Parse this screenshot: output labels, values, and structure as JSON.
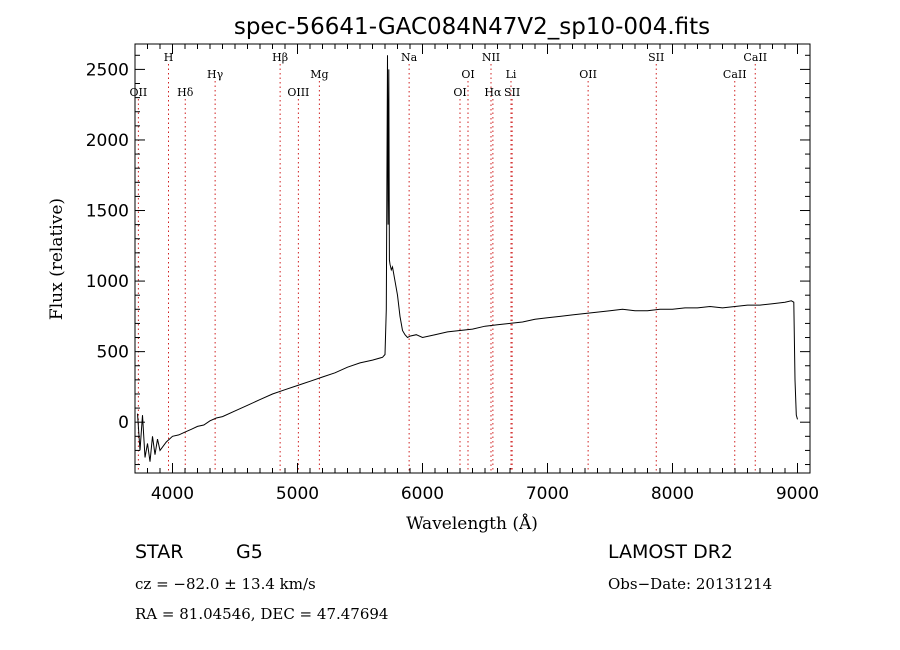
{
  "chart_data": {
    "type": "line",
    "title": "spec-56641-GAC084N47V2_sp10-004.fits",
    "xlabel": "Wavelength (Å)",
    "ylabel": "Flux (relative)",
    "xlim": [
      3700,
      9100
    ],
    "ylim": [
      -360,
      2680
    ],
    "xticks": [
      4000,
      5000,
      6000,
      7000,
      8000,
      9000
    ],
    "yticks": [
      0,
      500,
      1000,
      1500,
      2000,
      2500
    ],
    "line_color": "#000000",
    "marker_color": "#d02020",
    "grid": false,
    "series": [
      {
        "x": [
          3720,
          3740,
          3760,
          3780,
          3800,
          3820,
          3840,
          3860,
          3880,
          3900,
          3950,
          4000,
          4050,
          4100,
          4150,
          4200,
          4250,
          4300,
          4350,
          4400,
          4500,
          4600,
          4700,
          4800,
          4900,
          5000,
          5100,
          5200,
          5300,
          5400,
          5500,
          5600,
          5680,
          5700,
          5710,
          5720,
          5725,
          5730,
          5735,
          5740,
          5750,
          5760,
          5780,
          5800,
          5820,
          5840,
          5860,
          5880,
          5900,
          5950,
          6000,
          6100,
          6200,
          6300,
          6400,
          6500,
          6600,
          6700,
          6800,
          6900,
          7000,
          7100,
          7200,
          7300,
          7400,
          7500,
          7600,
          7700,
          7800,
          7900,
          8000,
          8100,
          8200,
          8300,
          8400,
          8500,
          8600,
          8700,
          8800,
          8900,
          8950,
          8970,
          8980,
          8990,
          9000
        ],
        "y": [
          60,
          -200,
          50,
          -250,
          -150,
          -280,
          -100,
          -230,
          -120,
          -200,
          -140,
          -100,
          -90,
          -70,
          -50,
          -30,
          -20,
          10,
          30,
          40,
          80,
          120,
          160,
          200,
          230,
          260,
          290,
          320,
          350,
          390,
          420,
          440,
          460,
          480,
          800,
          2600,
          1400,
          2500,
          1150,
          1120,
          1080,
          1100,
          1000,
          900,
          750,
          650,
          620,
          600,
          610,
          620,
          600,
          620,
          640,
          650,
          660,
          680,
          690,
          700,
          710,
          730,
          740,
          750,
          760,
          770,
          780,
          790,
          800,
          790,
          790,
          800,
          800,
          810,
          810,
          820,
          810,
          820,
          830,
          830,
          840,
          850,
          860,
          850,
          300,
          50,
          20
        ]
      }
    ],
    "spectral_lines": [
      {
        "label": "OII",
        "x": 3727,
        "row": 3
      },
      {
        "label": "H",
        "x": 3968,
        "row": 1
      },
      {
        "label": "Hδ",
        "x": 4102,
        "row": 3
      },
      {
        "label": "Hγ",
        "x": 4341,
        "row": 2
      },
      {
        "label": "Hβ",
        "x": 4861,
        "row": 1
      },
      {
        "label": "OIII",
        "x": 5007,
        "row": 3
      },
      {
        "label": "Mg",
        "x": 5175,
        "row": 2
      },
      {
        "label": "Na",
        "x": 5893,
        "row": 1
      },
      {
        "label": "OI",
        "x": 6300,
        "row": 3
      },
      {
        "label": "OI",
        "x": 6364,
        "row": 2
      },
      {
        "label": "NII",
        "x": 6548,
        "row": 1
      },
      {
        "label": "Hα",
        "x": 6563,
        "row": 3
      },
      {
        "label": "Li",
        "x": 6708,
        "row": 2
      },
      {
        "label": "SII",
        "x": 6717,
        "row": 3
      },
      {
        "label": "OII",
        "x": 7325,
        "row": 2
      },
      {
        "label": "SII",
        "x": 7870,
        "row": 1
      },
      {
        "label": "CaII",
        "x": 8498,
        "row": 2
      },
      {
        "label": "CaII",
        "x": 8662,
        "row": 1
      }
    ]
  },
  "info": {
    "object_class": "STAR",
    "subclass": "G5",
    "survey": "LAMOST DR2",
    "redshift": "cz = −82.0 ± 13.4 km/s",
    "obs_date": "Obs−Date: 20131214",
    "coords": "RA =  81.04546, DEC =  47.47694"
  }
}
